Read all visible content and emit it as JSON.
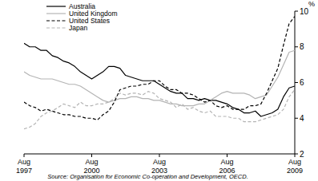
{
  "chart_data": {
    "type": "line",
    "y_label": "%",
    "source": "Source: Organisation for Economic Co-operation and Development, OECD.",
    "legend": "upper left",
    "grid": false,
    "ylim": [
      2,
      10
    ],
    "yticks": [
      2,
      4,
      6,
      8,
      10
    ],
    "categories": [
      "Aug 1997",
      null,
      null,
      null,
      null,
      null,
      null,
      null,
      null,
      null,
      null,
      null,
      "Aug 2000",
      null,
      null,
      null,
      null,
      null,
      null,
      null,
      null,
      null,
      null,
      null,
      "Aug 2003",
      null,
      null,
      null,
      null,
      null,
      null,
      null,
      null,
      null,
      null,
      null,
      "Aug 2006",
      null,
      null,
      null,
      null,
      null,
      null,
      null,
      null,
      null,
      null,
      null,
      "Aug 2009"
    ],
    "series": [
      {
        "name": "Australia",
        "color": "#000000",
        "line_style": "solid",
        "values": [
          8.2,
          8.0,
          8.0,
          7.8,
          7.8,
          7.5,
          7.4,
          7.2,
          7.1,
          6.9,
          6.6,
          6.4,
          6.2,
          6.4,
          6.6,
          6.9,
          6.9,
          6.8,
          6.4,
          6.3,
          6.2,
          6.1,
          6.1,
          6.1,
          5.9,
          5.7,
          5.5,
          5.4,
          5.4,
          5.1,
          5.1,
          5.0,
          5.1,
          5.0,
          5.0,
          4.9,
          4.8,
          4.6,
          4.5,
          4.3,
          4.3,
          4.4,
          4.1,
          4.2,
          4.3,
          4.5,
          5.2,
          5.7,
          5.8
        ]
      },
      {
        "name": "United Kingdom",
        "color": "#b4b4b4",
        "line_style": "solid",
        "values": [
          6.6,
          6.4,
          6.3,
          6.2,
          6.2,
          6.2,
          6.1,
          6.0,
          5.9,
          5.9,
          5.8,
          5.6,
          5.4,
          5.2,
          5.0,
          4.9,
          5.0,
          5.1,
          5.1,
          5.2,
          5.2,
          5.1,
          5.1,
          5.0,
          5.0,
          4.9,
          4.8,
          4.8,
          4.7,
          4.7,
          4.7,
          4.8,
          4.8,
          5.0,
          5.2,
          5.4,
          5.5,
          5.4,
          5.4,
          5.4,
          5.3,
          5.1,
          5.2,
          5.3,
          5.8,
          6.3,
          7.0,
          7.7,
          7.8
        ]
      },
      {
        "name": "United States",
        "color": "#000000",
        "line_style": "dashed",
        "values": [
          4.9,
          4.7,
          4.6,
          4.4,
          4.5,
          4.4,
          4.3,
          4.2,
          4.2,
          4.1,
          4.1,
          4.0,
          4.0,
          3.9,
          4.2,
          4.4,
          4.9,
          5.6,
          5.7,
          5.8,
          5.8,
          5.9,
          5.9,
          6.1,
          6.1,
          5.8,
          5.6,
          5.6,
          5.4,
          5.4,
          5.3,
          5.1,
          4.9,
          5.0,
          4.7,
          4.6,
          4.7,
          4.5,
          4.5,
          4.5,
          4.7,
          4.7,
          4.8,
          5.4,
          6.1,
          6.8,
          8.1,
          9.3,
          9.7
        ]
      },
      {
        "name": "Japan",
        "color": "#b4b4b4",
        "line_style": "dashed",
        "values": [
          3.4,
          3.5,
          3.7,
          4.1,
          4.3,
          4.4,
          4.6,
          4.8,
          4.7,
          4.6,
          4.9,
          4.7,
          4.7,
          4.8,
          4.8,
          4.9,
          5.1,
          5.4,
          5.3,
          5.4,
          5.4,
          5.3,
          5.5,
          5.4,
          5.1,
          5.0,
          4.9,
          4.6,
          4.8,
          4.5,
          4.6,
          4.4,
          4.3,
          4.4,
          4.1,
          4.1,
          4.1,
          4.0,
          4.0,
          3.8,
          3.8,
          3.8,
          3.9,
          4.0,
          4.1,
          4.2,
          4.5,
          5.2,
          5.6
        ]
      }
    ]
  }
}
